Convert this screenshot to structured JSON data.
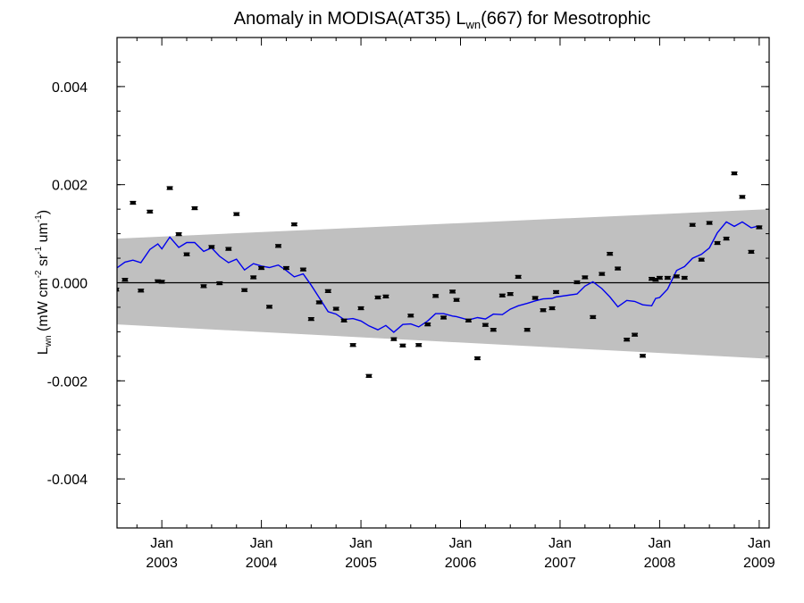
{
  "chart_data": {
    "type": "scatter",
    "title": {
      "prefix": "Anomaly in MODISA(AT35) L",
      "sub": "wn",
      "suffix": "(667) for Mesotrophic"
    },
    "ylabel": {
      "main": "L",
      "sub": "wn",
      "units_open": " (mW cm",
      "exp1": "-2",
      "mid1": " sr",
      "exp2": "-1",
      "mid2": " um",
      "exp3": "-1",
      "units_close": ")"
    },
    "xlim": [
      2002.55,
      2009.1
    ],
    "ylim": [
      -0.005,
      0.005
    ],
    "grid": false,
    "xticks": [
      {
        "month": "Jan",
        "year": "2003",
        "x": 2003.0
      },
      {
        "month": "Jan",
        "year": "2004",
        "x": 2004.0
      },
      {
        "month": "Jan",
        "year": "2005",
        "x": 2005.0
      },
      {
        "month": "Jan",
        "year": "2006",
        "x": 2006.0
      },
      {
        "month": "Jan",
        "year": "2007",
        "x": 2007.0
      },
      {
        "month": "Jan",
        "year": "2008",
        "x": 2008.0
      },
      {
        "month": "Jan",
        "year": "2009",
        "x": 2009.0
      }
    ],
    "yticks": [
      {
        "label": "0.004",
        "y": 0.004
      },
      {
        "label": "0.002",
        "y": 0.002
      },
      {
        "label": "0.000",
        "y": 0.0
      },
      {
        "label": "-0.002",
        "y": -0.002
      },
      {
        "label": "-0.004",
        "y": -0.004
      }
    ],
    "band": {
      "color": "#c0c0c0",
      "x": [
        2002.55,
        2009.1
      ],
      "upper": [
        0.0009,
        0.0015
      ],
      "lower": [
        -0.00085,
        -0.00155
      ]
    },
    "zero_line": 0.0,
    "series": [
      {
        "type": "scatter_errorbar",
        "color": "#000000",
        "points": [
          [
            2002.54,
            -0.00014
          ],
          [
            2002.63,
            6e-05
          ],
          [
            2002.71,
            0.00163
          ],
          [
            2002.79,
            -0.00016
          ],
          [
            2002.88,
            0.00145
          ],
          [
            2002.96,
            3e-05
          ],
          [
            2003.0,
            2e-05
          ],
          [
            2003.08,
            0.00193
          ],
          [
            2003.17,
            0.00099
          ],
          [
            2003.25,
            0.00058
          ],
          [
            2003.33,
            0.00152
          ],
          [
            2003.42,
            -7e-05
          ],
          [
            2003.5,
            0.00073
          ],
          [
            2003.58,
            -1e-05
          ],
          [
            2003.67,
            0.00069
          ],
          [
            2003.75,
            0.0014
          ],
          [
            2003.83,
            -0.00015
          ],
          [
            2003.92,
            0.00011
          ],
          [
            2004.0,
            0.0003
          ],
          [
            2004.08,
            -0.00049
          ],
          [
            2004.17,
            0.00075
          ],
          [
            2004.25,
            0.0003
          ],
          [
            2004.33,
            0.00119
          ],
          [
            2004.42,
            0.00027
          ],
          [
            2004.5,
            -0.00074
          ],
          [
            2004.58,
            -0.0004
          ],
          [
            2004.67,
            -0.00017
          ],
          [
            2004.75,
            -0.00053
          ],
          [
            2004.83,
            -0.00077
          ],
          [
            2004.92,
            -0.00127
          ],
          [
            2005.0,
            -0.00052
          ],
          [
            2005.08,
            -0.0019
          ],
          [
            2005.17,
            -0.0003
          ],
          [
            2005.25,
            -0.00028
          ],
          [
            2005.33,
            -0.00115
          ],
          [
            2005.42,
            -0.00128
          ],
          [
            2005.5,
            -0.00067
          ],
          [
            2005.58,
            -0.00127
          ],
          [
            2005.67,
            -0.00085
          ],
          [
            2005.75,
            -0.00027
          ],
          [
            2005.83,
            -0.00071
          ],
          [
            2005.92,
            -0.00018
          ],
          [
            2005.96,
            -0.00035
          ],
          [
            2006.08,
            -0.00077
          ],
          [
            2006.17,
            -0.00154
          ],
          [
            2006.25,
            -0.00086
          ],
          [
            2006.33,
            -0.00096
          ],
          [
            2006.42,
            -0.00026
          ],
          [
            2006.5,
            -0.00023
          ],
          [
            2006.58,
            0.00012
          ],
          [
            2006.67,
            -0.00096
          ],
          [
            2006.75,
            -0.00031
          ],
          [
            2006.83,
            -0.00056
          ],
          [
            2006.92,
            -0.00052
          ],
          [
            2006.96,
            -0.00019
          ],
          [
            2007.17,
            1e-05
          ],
          [
            2007.25,
            0.00011
          ],
          [
            2007.33,
            -0.0007
          ],
          [
            2007.42,
            0.00018
          ],
          [
            2007.5,
            0.00059
          ],
          [
            2007.58,
            0.00029
          ],
          [
            2007.67,
            -0.00116
          ],
          [
            2007.75,
            -0.00106
          ],
          [
            2007.83,
            -0.00149
          ],
          [
            2007.92,
            8e-05
          ],
          [
            2007.96,
            6e-05
          ],
          [
            2008.0,
            0.0001
          ],
          [
            2008.08,
            0.0001
          ],
          [
            2008.17,
            0.00013
          ],
          [
            2008.25,
            0.0001
          ],
          [
            2008.33,
            0.00118
          ],
          [
            2008.42,
            0.00047
          ],
          [
            2008.5,
            0.00122
          ],
          [
            2008.58,
            0.00081
          ],
          [
            2008.67,
            0.0009
          ],
          [
            2008.75,
            0.00223
          ],
          [
            2008.83,
            0.00175
          ],
          [
            2008.92,
            0.00063
          ],
          [
            2009.0,
            0.00113
          ]
        ]
      },
      {
        "type": "line",
        "color": "#0000ee",
        "points": [
          [
            2002.54,
            0.00029
          ],
          [
            2002.63,
            0.00042
          ],
          [
            2002.71,
            0.00046
          ],
          [
            2002.79,
            0.00041
          ],
          [
            2002.88,
            0.00068
          ],
          [
            2002.96,
            0.00079
          ],
          [
            2003.0,
            0.00069
          ],
          [
            2003.08,
            0.00093
          ],
          [
            2003.17,
            0.00072
          ],
          [
            2003.25,
            0.00082
          ],
          [
            2003.33,
            0.00082
          ],
          [
            2003.42,
            0.00064
          ],
          [
            2003.5,
            0.00071
          ],
          [
            2003.58,
            0.00054
          ],
          [
            2003.67,
            0.00041
          ],
          [
            2003.75,
            0.00048
          ],
          [
            2003.83,
            0.00026
          ],
          [
            2003.92,
            0.00039
          ],
          [
            2004.0,
            0.00034
          ],
          [
            2004.08,
            0.00031
          ],
          [
            2004.17,
            0.00036
          ],
          [
            2004.25,
            0.00025
          ],
          [
            2004.33,
            0.00012
          ],
          [
            2004.42,
            0.00018
          ],
          [
            2004.5,
            -5e-05
          ],
          [
            2004.58,
            -0.0003
          ],
          [
            2004.67,
            -0.00059
          ],
          [
            2004.75,
            -0.00064
          ],
          [
            2004.83,
            -0.00075
          ],
          [
            2004.92,
            -0.00073
          ],
          [
            2005.0,
            -0.00078
          ],
          [
            2005.08,
            -0.00088
          ],
          [
            2005.17,
            -0.00096
          ],
          [
            2005.25,
            -0.00087
          ],
          [
            2005.33,
            -0.00101
          ],
          [
            2005.42,
            -0.00085
          ],
          [
            2005.5,
            -0.00084
          ],
          [
            2005.58,
            -0.0009
          ],
          [
            2005.67,
            -0.00078
          ],
          [
            2005.75,
            -0.00063
          ],
          [
            2005.83,
            -0.00063
          ],
          [
            2005.92,
            -0.00068
          ],
          [
            2005.96,
            -0.00069
          ],
          [
            2006.08,
            -0.00076
          ],
          [
            2006.17,
            -0.00071
          ],
          [
            2006.25,
            -0.00074
          ],
          [
            2006.33,
            -0.00064
          ],
          [
            2006.42,
            -0.00065
          ],
          [
            2006.5,
            -0.00054
          ],
          [
            2006.58,
            -0.00047
          ],
          [
            2006.67,
            -0.00042
          ],
          [
            2006.75,
            -0.00037
          ],
          [
            2006.83,
            -0.00033
          ],
          [
            2006.92,
            -0.00032
          ],
          [
            2006.96,
            -0.00029
          ],
          [
            2007.17,
            -0.00023
          ],
          [
            2007.25,
            -7e-05
          ],
          [
            2007.33,
            2e-05
          ],
          [
            2007.42,
            -0.00012
          ],
          [
            2007.5,
            -0.00029
          ],
          [
            2007.58,
            -0.00049
          ],
          [
            2007.67,
            -0.00036
          ],
          [
            2007.75,
            -0.00038
          ],
          [
            2007.83,
            -0.00045
          ],
          [
            2007.92,
            -0.00047
          ],
          [
            2007.96,
            -0.00032
          ],
          [
            2008.0,
            -0.0003
          ],
          [
            2008.08,
            -0.00013
          ],
          [
            2008.17,
            0.00025
          ],
          [
            2008.25,
            0.00033
          ],
          [
            2008.33,
            0.0005
          ],
          [
            2008.42,
            0.00058
          ],
          [
            2008.5,
            0.00071
          ],
          [
            2008.58,
            0.00102
          ],
          [
            2008.67,
            0.00124
          ],
          [
            2008.75,
            0.00115
          ],
          [
            2008.83,
            0.00124
          ],
          [
            2008.92,
            0.00112
          ],
          [
            2009.0,
            0.00116
          ]
        ]
      }
    ]
  }
}
